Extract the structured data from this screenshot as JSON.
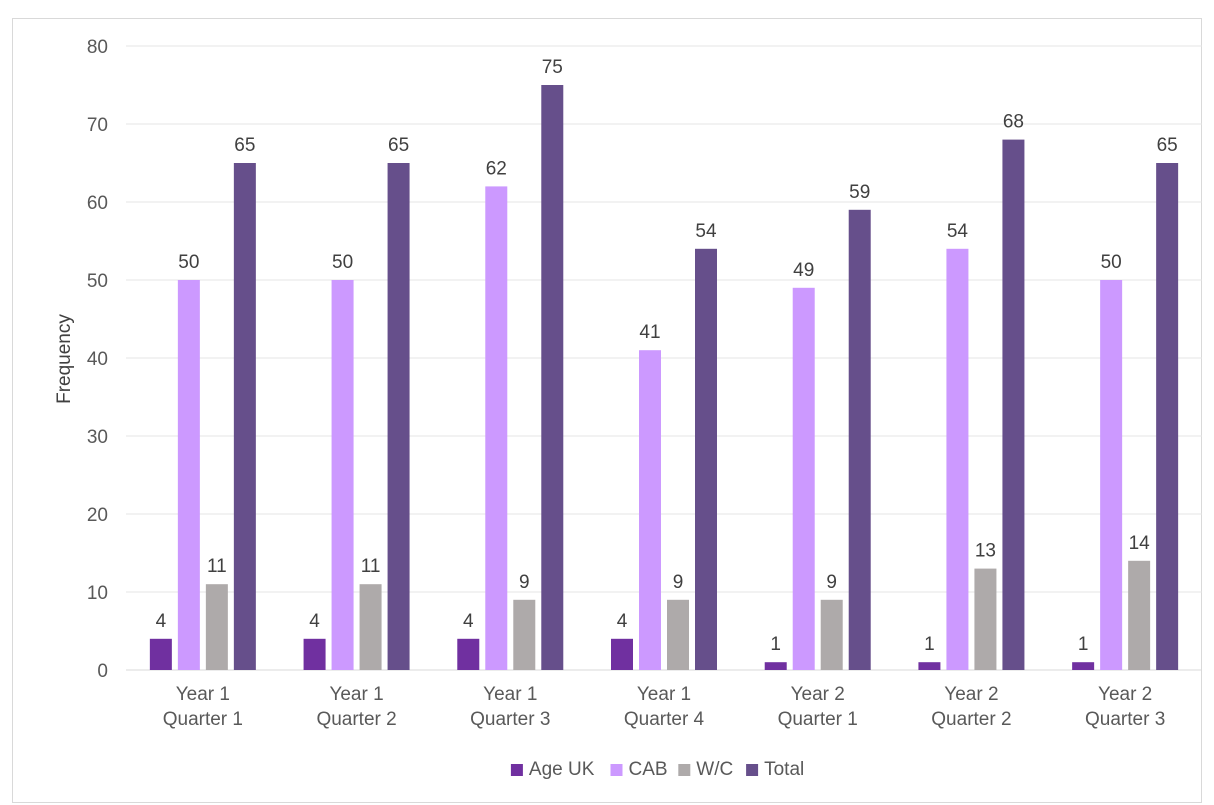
{
  "chart_data": {
    "type": "bar",
    "title": "",
    "xlabel": "",
    "ylabel": "Frequency",
    "ylim": [
      0,
      80
    ],
    "y_ticks": [
      0,
      10,
      20,
      30,
      40,
      50,
      60,
      70,
      80
    ],
    "grid": true,
    "legend_position": "bottom",
    "categories": [
      [
        "Year 1",
        "Quarter 1"
      ],
      [
        "Year 1",
        "Quarter 2"
      ],
      [
        "Year 1",
        "Quarter 3"
      ],
      [
        "Year 1",
        "Quarter 4"
      ],
      [
        "Year 2",
        "Quarter 1"
      ],
      [
        "Year 2",
        "Quarter 2"
      ],
      [
        "Year 2",
        "Quarter 3"
      ]
    ],
    "series": [
      {
        "name": "Age UK",
        "color": "#7030a0",
        "values": [
          4,
          4,
          4,
          4,
          1,
          1,
          1
        ]
      },
      {
        "name": "CAB",
        "color": "#cc99ff",
        "values": [
          50,
          50,
          62,
          41,
          49,
          54,
          50
        ]
      },
      {
        "name": "W/C",
        "color": "#aeaaaa",
        "values": [
          11,
          11,
          9,
          9,
          9,
          13,
          14
        ]
      },
      {
        "name": "Total",
        "color": "#664f8b",
        "values": [
          65,
          65,
          75,
          54,
          59,
          68,
          65
        ]
      }
    ]
  }
}
